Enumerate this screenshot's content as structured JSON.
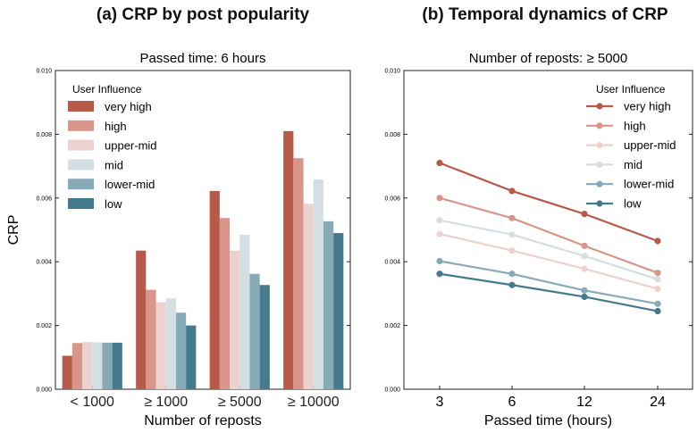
{
  "titles": {
    "a": "(a) CRP by post popularity",
    "b": "(b) Temporal dynamics of CRP"
  },
  "colors": {
    "very high": "#b85a4a",
    "high": "#d9958a",
    "upper-mid": "#ecd2cf",
    "mid": "#d4dfe3",
    "lower-mid": "#86aab6",
    "low": "#457a8c"
  },
  "chart_data": [
    {
      "type": "bar",
      "title": "Passed time: 6 hours",
      "xlabel": "Number of reposts",
      "ylabel": "CRP",
      "ylim": [
        0,
        0.01
      ],
      "yticks": [
        "0.000",
        "0.002",
        "0.004",
        "0.006",
        "0.008",
        "0.010"
      ],
      "categories": [
        "< 1000",
        "≥ 1000",
        "≥ 5000",
        "≥ 10000"
      ],
      "legend_title": "User Influence",
      "legend_position": "top-left",
      "series": [
        {
          "name": "very high",
          "values": [
            0.00105,
            0.00435,
            0.00622,
            0.0081
          ]
        },
        {
          "name": "high",
          "values": [
            0.00145,
            0.00312,
            0.00537,
            0.00725
          ]
        },
        {
          "name": "upper-mid",
          "values": [
            0.00148,
            0.00273,
            0.00435,
            0.00582
          ]
        },
        {
          "name": "mid",
          "values": [
            0.00147,
            0.00285,
            0.00485,
            0.00658
          ]
        },
        {
          "name": "lower-mid",
          "values": [
            0.00146,
            0.0024,
            0.00362,
            0.00527
          ]
        },
        {
          "name": "low",
          "values": [
            0.00146,
            0.002,
            0.00327,
            0.0049
          ]
        }
      ]
    },
    {
      "type": "line",
      "title": "Number of reposts: ≥ 5000",
      "xlabel": "Passed time (hours)",
      "ylabel": "",
      "ylim": [
        0,
        0.01
      ],
      "yticks": [
        "0.000",
        "0.002",
        "0.004",
        "0.006",
        "0.008",
        "0.010"
      ],
      "x": [
        "3",
        "6",
        "12",
        "24"
      ],
      "legend_title": "User Influence",
      "legend_position": "top-right",
      "series": [
        {
          "name": "very high",
          "values": [
            0.0071,
            0.00622,
            0.0055,
            0.00465
          ]
        },
        {
          "name": "high",
          "values": [
            0.006,
            0.00537,
            0.0045,
            0.00365
          ]
        },
        {
          "name": "upper-mid",
          "values": [
            0.00487,
            0.00435,
            0.00378,
            0.00315
          ]
        },
        {
          "name": "mid",
          "values": [
            0.0053,
            0.00485,
            0.00418,
            0.00345
          ]
        },
        {
          "name": "lower-mid",
          "values": [
            0.00402,
            0.00362,
            0.0031,
            0.00268
          ]
        },
        {
          "name": "low",
          "values": [
            0.00362,
            0.00327,
            0.0029,
            0.00245
          ]
        }
      ]
    }
  ]
}
